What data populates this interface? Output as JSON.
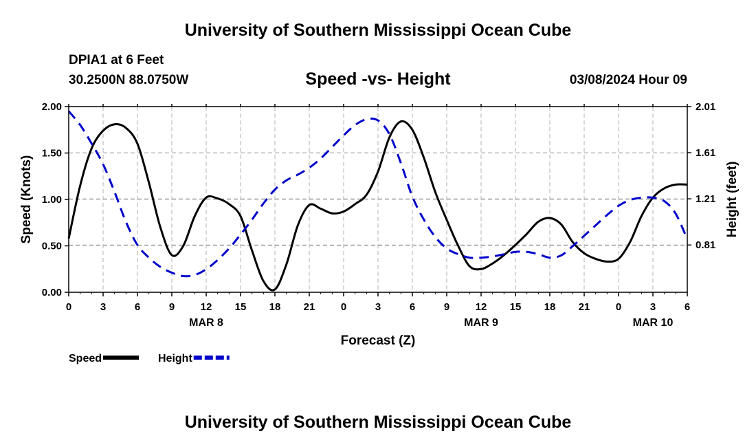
{
  "header": {
    "title": "University of Southern Mississippi Ocean Cube",
    "station": "DPIA1 at 6 Feet",
    "coordinates": "30.2500N  88.0750W",
    "subtitle": "Speed -vs- Height",
    "datetime": "03/08/2024 Hour 09"
  },
  "footer": {
    "title": "University of Southern Mississippi Ocean Cube"
  },
  "colors": {
    "speed": "#000000",
    "height": "#0000cc",
    "grid": "#b0b0b0"
  },
  "chart_data": {
    "type": "line",
    "title": "Speed -vs- Height",
    "xlabel": "Forecast (Z)",
    "ylabel": "Speed (Knots)",
    "y2label": "Height (feet)",
    "xlim": [
      0,
      54
    ],
    "ylim": [
      0,
      2.0
    ],
    "y2lim": [
      0.4,
      2.01
    ],
    "grid": true,
    "legend_position": "bottom-left",
    "x_ticks": [
      0,
      3,
      6,
      9,
      12,
      15,
      18,
      21,
      24,
      27,
      30,
      33,
      36,
      39,
      42,
      45,
      48,
      51,
      54
    ],
    "x_tick_labels": [
      "0",
      "3",
      "6",
      "9",
      "12",
      "15",
      "18",
      "21",
      "0",
      "3",
      "6",
      "9",
      "12",
      "15",
      "18",
      "21",
      "0",
      "3",
      "6"
    ],
    "date_labels": [
      {
        "x": 12,
        "label": "MAR 8"
      },
      {
        "x": 36,
        "label": "MAR 9"
      },
      {
        "x": 51,
        "label": "MAR 10"
      }
    ],
    "y_ticks": [
      0.0,
      0.5,
      1.0,
      1.5,
      2.0
    ],
    "y_tick_labels": [
      "0.00",
      "0.50",
      "1.00",
      "1.50",
      "2.00"
    ],
    "y2_ticks": [
      0.81,
      1.21,
      1.61,
      2.01
    ],
    "y2_tick_labels": [
      "0.81",
      "1.21",
      "1.61",
      "2.01"
    ],
    "series": [
      {
        "name": "Speed",
        "axis": "left",
        "style": "solid",
        "x": [
          0,
          1,
          2,
          3,
          4,
          5,
          6,
          7,
          8,
          9,
          10,
          11,
          12,
          13,
          14,
          15,
          16,
          17,
          18,
          19,
          20,
          21,
          22,
          23,
          24,
          25,
          26,
          27,
          28,
          29,
          30,
          31,
          32,
          33,
          34,
          35,
          36,
          37,
          38,
          39,
          40,
          41,
          42,
          43,
          44,
          45,
          46,
          47,
          48,
          49,
          50,
          51,
          52,
          53,
          54
        ],
        "values": [
          0.58,
          1.15,
          1.55,
          1.74,
          1.81,
          1.77,
          1.6,
          1.18,
          0.7,
          0.4,
          0.5,
          0.82,
          1.02,
          1.01,
          0.95,
          0.82,
          0.45,
          0.12,
          0.03,
          0.3,
          0.72,
          0.94,
          0.9,
          0.85,
          0.87,
          0.95,
          1.05,
          1.3,
          1.67,
          1.84,
          1.75,
          1.45,
          1.08,
          0.78,
          0.5,
          0.28,
          0.25,
          0.31,
          0.4,
          0.51,
          0.63,
          0.76,
          0.8,
          0.73,
          0.54,
          0.42,
          0.36,
          0.33,
          0.36,
          0.54,
          0.82,
          1.02,
          1.12,
          1.16,
          1.16
        ]
      },
      {
        "name": "Height",
        "axis": "right",
        "style": "dashed",
        "x": [
          0,
          1,
          2,
          3,
          4,
          5,
          6,
          7,
          8,
          9,
          10,
          11,
          12,
          13,
          14,
          15,
          16,
          17,
          18,
          19,
          20,
          21,
          22,
          23,
          24,
          25,
          26,
          27,
          28,
          29,
          30,
          31,
          32,
          33,
          34,
          35,
          36,
          37,
          38,
          39,
          40,
          41,
          42,
          43,
          44,
          45,
          46,
          47,
          48,
          49,
          50,
          51,
          52,
          53,
          54
        ],
        "values": [
          1.97,
          1.85,
          1.69,
          1.51,
          1.27,
          1.01,
          0.81,
          0.7,
          0.62,
          0.57,
          0.54,
          0.55,
          0.6,
          0.68,
          0.78,
          0.9,
          1.03,
          1.17,
          1.29,
          1.37,
          1.42,
          1.48,
          1.56,
          1.66,
          1.76,
          1.85,
          1.9,
          1.89,
          1.77,
          1.52,
          1.23,
          1.03,
          0.88,
          0.78,
          0.73,
          0.7,
          0.7,
          0.71,
          0.73,
          0.75,
          0.75,
          0.73,
          0.7,
          0.72,
          0.8,
          0.89,
          0.98,
          1.07,
          1.15,
          1.2,
          1.22,
          1.22,
          1.19,
          1.08,
          0.86
        ]
      }
    ]
  }
}
